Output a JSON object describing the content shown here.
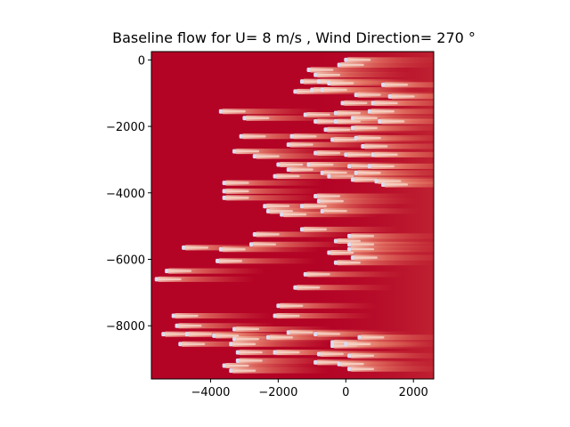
{
  "chart_data": {
    "type": "heatmap",
    "title": "Baseline flow for U= 8 m/s  ,  Wind Direction= 270  °",
    "xlabel": "",
    "ylabel": "",
    "xlim": [
      -5750,
      2600
    ],
    "ylim": [
      -9600,
      250
    ],
    "x_ticks": [
      -4000,
      -2000,
      0,
      2000
    ],
    "x_tick_labels": [
      "−4000",
      "−2000",
      "0",
      "2000"
    ],
    "y_ticks": [
      0,
      -2000,
      -4000,
      -6000,
      -8000
    ],
    "y_tick_labels": [
      "0",
      "−2000",
      "−4000",
      "−6000",
      "−8000"
    ],
    "grid": false,
    "background_color": "#b40426",
    "wake_color": "#e8806a",
    "turbine_color": "#dcdcf0",
    "turbines": [
      {
        "x": 0,
        "y": 0
      },
      {
        "x": -200,
        "y": -150
      },
      {
        "x": -1100,
        "y": -300
      },
      {
        "x": -900,
        "y": -450
      },
      {
        "x": -1300,
        "y": -650
      },
      {
        "x": -800,
        "y": -650
      },
      {
        "x": -500,
        "y": -700
      },
      {
        "x": 1100,
        "y": -750
      },
      {
        "x": -1500,
        "y": -950
      },
      {
        "x": -1000,
        "y": -900
      },
      {
        "x": -700,
        "y": -900
      },
      {
        "x": 300,
        "y": -1050
      },
      {
        "x": 1300,
        "y": -1100
      },
      {
        "x": -100,
        "y": -1300
      },
      {
        "x": 800,
        "y": -1300
      },
      {
        "x": -3700,
        "y": -1550
      },
      {
        "x": -1200,
        "y": -1650
      },
      {
        "x": -300,
        "y": -1600
      },
      {
        "x": 700,
        "y": -1550
      },
      {
        "x": -3000,
        "y": -1750
      },
      {
        "x": -900,
        "y": -1850
      },
      {
        "x": -300,
        "y": -1850
      },
      {
        "x": 200,
        "y": -1750
      },
      {
        "x": 1000,
        "y": -1850
      },
      {
        "x": -600,
        "y": -2100
      },
      {
        "x": 200,
        "y": -2050
      },
      {
        "x": -3100,
        "y": -2300
      },
      {
        "x": -1600,
        "y": -2300
      },
      {
        "x": -400,
        "y": -2400
      },
      {
        "x": 300,
        "y": -2350
      },
      {
        "x": -1700,
        "y": -2550
      },
      {
        "x": 500,
        "y": -2600
      },
      {
        "x": -3300,
        "y": -2750
      },
      {
        "x": -2700,
        "y": -2900
      },
      {
        "x": -900,
        "y": -2800
      },
      {
        "x": 0,
        "y": -2850
      },
      {
        "x": 800,
        "y": -2850
      },
      {
        "x": -2000,
        "y": -3150
      },
      {
        "x": -1100,
        "y": -3150
      },
      {
        "x": 100,
        "y": -3200
      },
      {
        "x": 700,
        "y": -3200
      },
      {
        "x": -1700,
        "y": -3300
      },
      {
        "x": -700,
        "y": -3400
      },
      {
        "x": -500,
        "y": -3500
      },
      {
        "x": 300,
        "y": -3400
      },
      {
        "x": -2100,
        "y": -3500
      },
      {
        "x": 200,
        "y": -3600
      },
      {
        "x": 900,
        "y": -3650
      },
      {
        "x": -3600,
        "y": -3700
      },
      {
        "x": 1100,
        "y": -3750
      },
      {
        "x": -3600,
        "y": -3950
      },
      {
        "x": -3600,
        "y": -4150
      },
      {
        "x": -900,
        "y": -4100
      },
      {
        "x": -800,
        "y": -4250
      },
      {
        "x": -2400,
        "y": -4400
      },
      {
        "x": -1300,
        "y": -4400
      },
      {
        "x": -2300,
        "y": -4550
      },
      {
        "x": -700,
        "y": -4550
      },
      {
        "x": -1900,
        "y": -4650
      },
      {
        "x": -1300,
        "y": -5100
      },
      {
        "x": -2700,
        "y": -5250
      },
      {
        "x": 100,
        "y": -5300
      },
      {
        "x": -300,
        "y": -5450
      },
      {
        "x": 100,
        "y": -5550
      },
      {
        "x": -2800,
        "y": -5550
      },
      {
        "x": -4800,
        "y": -5650
      },
      {
        "x": -3700,
        "y": -5700
      },
      {
        "x": 100,
        "y": -5700
      },
      {
        "x": -500,
        "y": -5800
      },
      {
        "x": 200,
        "y": -5950
      },
      {
        "x": -3800,
        "y": -6050
      },
      {
        "x": -300,
        "y": -6100
      },
      {
        "x": -5300,
        "y": -6350
      },
      {
        "x": -1200,
        "y": -6450
      },
      {
        "x": -5600,
        "y": -6600
      },
      {
        "x": -1500,
        "y": -6850
      },
      {
        "x": -2000,
        "y": -7400
      },
      {
        "x": -5100,
        "y": -7700
      },
      {
        "x": -2100,
        "y": -7700
      },
      {
        "x": -5000,
        "y": -8000
      },
      {
        "x": -3300,
        "y": -8100
      },
      {
        "x": -1700,
        "y": -8200
      },
      {
        "x": -5400,
        "y": -8250
      },
      {
        "x": -4700,
        "y": -8250
      },
      {
        "x": -3900,
        "y": -8300
      },
      {
        "x": -900,
        "y": -8250
      },
      {
        "x": 400,
        "y": -8350
      },
      {
        "x": -3300,
        "y": -8400
      },
      {
        "x": -2300,
        "y": -8350
      },
      {
        "x": -400,
        "y": -8500
      },
      {
        "x": -4900,
        "y": -8550
      },
      {
        "x": -3400,
        "y": -8550
      },
      {
        "x": -400,
        "y": -8600
      },
      {
        "x": 0,
        "y": -8550
      },
      {
        "x": -3200,
        "y": -8800
      },
      {
        "x": -2100,
        "y": -8800
      },
      {
        "x": -800,
        "y": -8850
      },
      {
        "x": 100,
        "y": -8900
      },
      {
        "x": -3200,
        "y": -9050
      },
      {
        "x": -900,
        "y": -9100
      },
      {
        "x": -3600,
        "y": -9200
      },
      {
        "x": -200,
        "y": -9150
      },
      {
        "x": -3400,
        "y": -9350
      },
      {
        "x": 100,
        "y": -9300
      }
    ]
  }
}
